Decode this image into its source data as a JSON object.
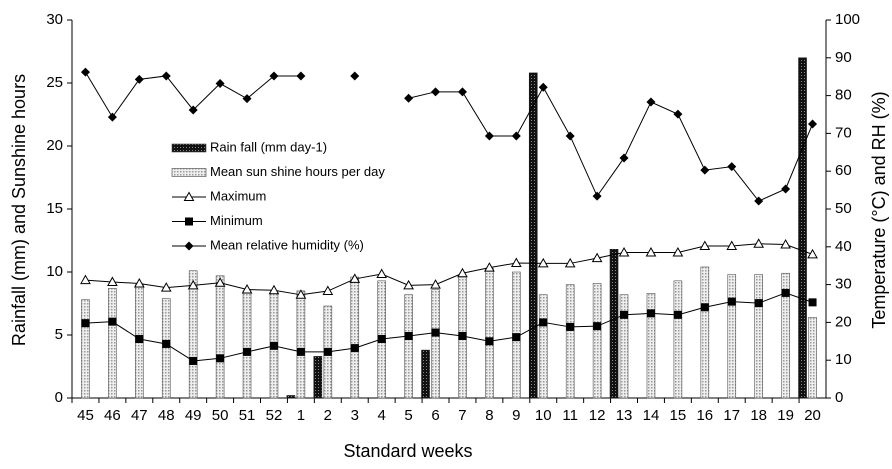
{
  "chart_data": {
    "type": "bar-line",
    "x_label": "Standard weeks",
    "y_label": "Rainfall (mm) and Sunshine hours",
    "y2_label": "Temperature (°C) and RH (%)",
    "categories": [
      "45",
      "46",
      "47",
      "48",
      "49",
      "50",
      "51",
      "52",
      "1",
      "2",
      "3",
      "4",
      "5",
      "6",
      "7",
      "8",
      "9",
      "10",
      "11",
      "12",
      "13",
      "14",
      "15",
      "16",
      "17",
      "18",
      "19",
      "20"
    ],
    "ylim": [
      0,
      30
    ],
    "yticks": [
      0,
      5,
      10,
      15,
      20,
      25,
      30
    ],
    "y2lim": [
      0,
      100
    ],
    "y2ticks": [
      0,
      10,
      20,
      30,
      40,
      50,
      60,
      70,
      80,
      90,
      100
    ],
    "legend": "center left",
    "series": [
      {
        "name": "Rain fall (mm day-1)",
        "kind": "bar",
        "color": "#1a1a1a",
        "values": [
          0,
          0,
          0,
          0,
          0,
          0,
          0,
          0,
          0.2,
          3.3,
          0,
          0,
          0,
          3.8,
          0,
          0,
          0,
          25.8,
          0,
          0,
          11.8,
          0,
          0,
          0,
          0,
          0,
          0,
          27
        ]
      },
      {
        "name": "Mean sun shine hours per day",
        "kind": "bar",
        "color": "#d4d4d4",
        "values": [
          7.8,
          8.7,
          9.0,
          7.9,
          10.1,
          9.7,
          8.5,
          8.4,
          8.5,
          7.3,
          9.6,
          9.3,
          8.2,
          8.6,
          9.6,
          10.3,
          10.0,
          8.2,
          9.0,
          9.1,
          8.2,
          8.3,
          9.3,
          10.4,
          9.8,
          9.8,
          9.9,
          6.4
        ]
      },
      {
        "name": "Maximum",
        "kind": "line",
        "marker": "triangle",
        "axis": "y2",
        "color": "#000000",
        "values": [
          31.2,
          30.7,
          30.3,
          29.2,
          29.8,
          30.5,
          28.7,
          28.5,
          27.3,
          28.3,
          31.5,
          32.8,
          29.8,
          30.0,
          33.0,
          34.5,
          35.7,
          35.6,
          35.6,
          37.0,
          38.5,
          38.5,
          38.5,
          40.2,
          40.2,
          40.8,
          40.6,
          38.0
        ]
      },
      {
        "name": "Minimum",
        "kind": "line",
        "marker": "square",
        "axis": "y2",
        "color": "#000000",
        "values": [
          19.8,
          20.2,
          15.6,
          14.3,
          9.8,
          10.5,
          12.2,
          13.8,
          12.2,
          12.2,
          13.2,
          15.6,
          16.4,
          17.3,
          16.4,
          15.0,
          16.1,
          20.0,
          18.8,
          19.0,
          22.0,
          22.4,
          22.0,
          24.0,
          25.5,
          25.1,
          27.8,
          25.3
        ]
      },
      {
        "name": "Mean relative  humidity (%)",
        "kind": "line",
        "marker": "diamond",
        "axis": "y2",
        "color": "#000000",
        "values": [
          86.2,
          74.3,
          84.3,
          85.2,
          76.2,
          83.2,
          79.2,
          85.2,
          85.2,
          null,
          85.2,
          null,
          79.3,
          81.0,
          81.0,
          69.3,
          69.3,
          82.2,
          69.3,
          53.4,
          63.5,
          78.3,
          75.1,
          60.3,
          61.2,
          52.1,
          55.3,
          72.5
        ]
      }
    ]
  }
}
